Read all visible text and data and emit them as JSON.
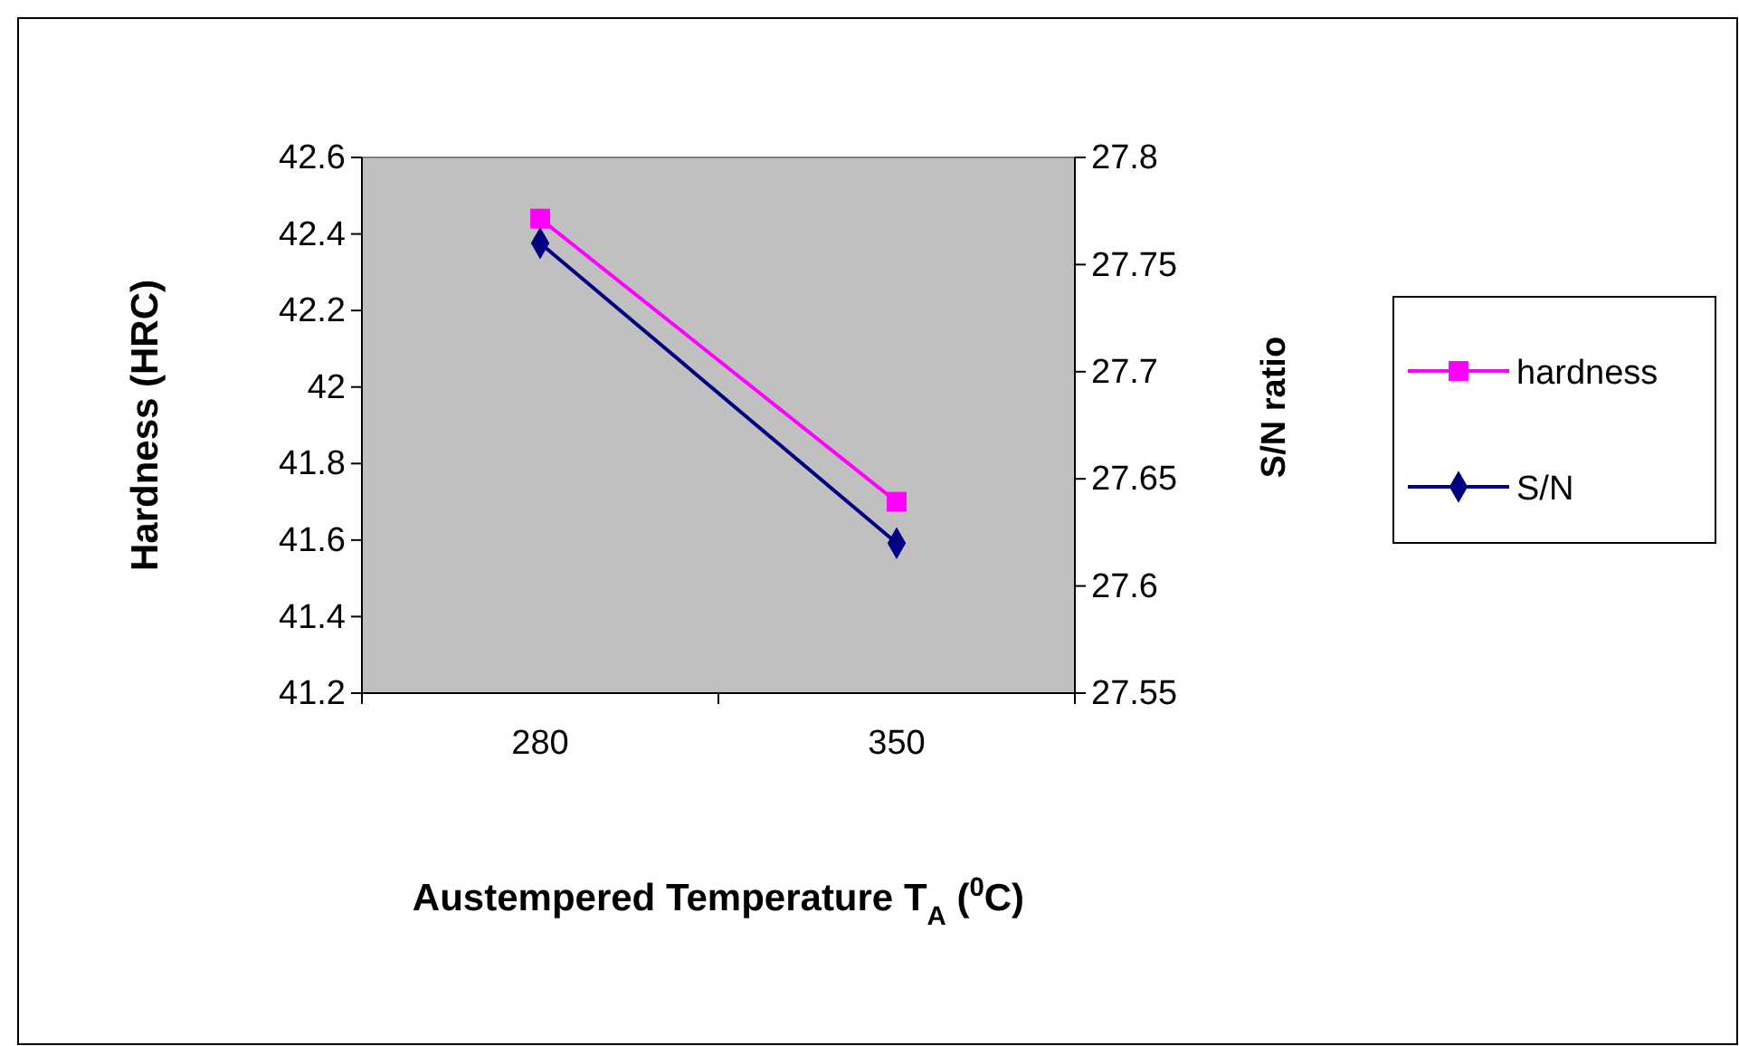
{
  "chart_data": {
    "type": "line",
    "xlabel": "Austempered Temperature T$_{A}$ ($^{0}$C)",
    "ylabel": "Hardness (HRC)",
    "y2label": "S/N ratio",
    "categories": [
      "280",
      "350"
    ],
    "series": [
      {
        "name": "hardness",
        "color": "#ff00ff",
        "values": [
          42.44,
          41.7
        ],
        "marker": "square"
      },
      {
        "name": "S/N",
        "color": "#000080",
        "values": [
          27.76,
          27.62
        ],
        "marker": "diamond",
        "axis": "y2"
      }
    ],
    "ylim": [
      41.2,
      42.6
    ],
    "yticks": [
      41.2,
      41.4,
      41.6,
      41.8,
      42,
      42.2,
      42.4,
      42.6
    ],
    "y2lim": [
      27.55,
      27.8
    ],
    "y2ticks": [
      27.55,
      27.6,
      27.65,
      27.7,
      27.75,
      27.8
    ],
    "legend": "right",
    "grid": false
  }
}
